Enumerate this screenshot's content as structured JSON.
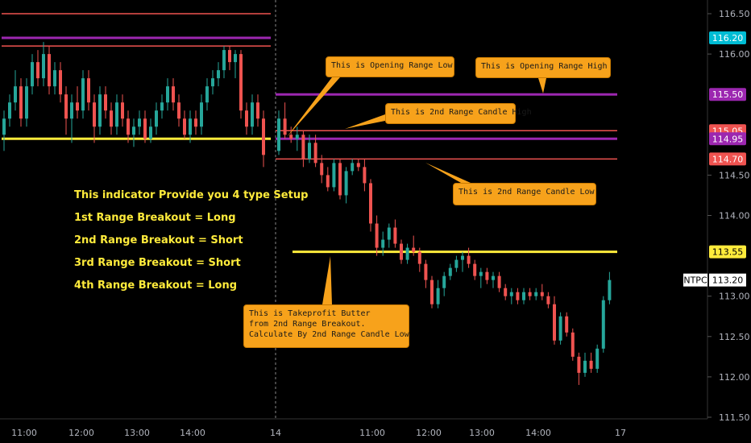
{
  "chart_data": {
    "type": "candlestick",
    "symbol": "NTPC",
    "y_axis": {
      "ticks": [
        {
          "value": 116.5,
          "label": "116.50"
        },
        {
          "value": 116.0,
          "label": "116.00"
        },
        {
          "value": 114.5,
          "label": "114.50"
        },
        {
          "value": 114.0,
          "label": "114.00"
        },
        {
          "value": 113.0,
          "label": "113.00"
        },
        {
          "value": 112.5,
          "label": "112.50"
        },
        {
          "value": 112.0,
          "label": "112.00"
        },
        {
          "value": 111.5,
          "label": "111.50"
        }
      ],
      "ylim": [
        111.5,
        116.6
      ]
    },
    "x_axis": {
      "ticks": [
        "11:00",
        "12:00",
        "13:00",
        "14:00",
        "14",
        "11:00",
        "12:00",
        "13:00",
        "14:00",
        "17"
      ]
    },
    "price_tags": [
      {
        "label": "116.20",
        "value": 116.2,
        "color": "#00bcd4"
      },
      {
        "label": "115.50",
        "value": 115.5,
        "color": "#9c27b0"
      },
      {
        "label": "115.05",
        "value": 115.05,
        "color": "#ef5350"
      },
      {
        "label": "114.95",
        "value": 114.95,
        "color": "#9c27b0"
      },
      {
        "label": "114.70",
        "value": 114.7,
        "color": "#ef5350"
      },
      {
        "label": "113.55",
        "value": 113.55,
        "color": "#ffeb3b"
      }
    ],
    "current_price": {
      "symbol": "NTPC",
      "label": "113.20",
      "value": 113.2
    },
    "levels": [
      {
        "value": 116.5,
        "color": "#ef5350",
        "day": 1
      },
      {
        "value": 116.2,
        "color": "#9c27b0",
        "day": 1
      },
      {
        "value": 116.1,
        "color": "#ef5350",
        "day": 1
      },
      {
        "value": 114.95,
        "color": "#ffeb3b",
        "day": 1
      },
      {
        "value": 115.5,
        "color": "#9c27b0",
        "day": 2
      },
      {
        "value": 115.05,
        "color": "#ef5350",
        "day": 2
      },
      {
        "value": 114.95,
        "color": "#9c27b0",
        "day": 2
      },
      {
        "value": 114.7,
        "color": "#ef5350",
        "day": 2
      },
      {
        "value": 113.55,
        "color": "#ffeb3b",
        "day": 2
      }
    ],
    "candles_day1": [
      [
        115.0,
        115.3,
        114.8,
        115.2
      ],
      [
        115.2,
        115.5,
        115.1,
        115.4
      ],
      [
        115.4,
        115.8,
        115.3,
        115.6
      ],
      [
        115.6,
        115.7,
        115.1,
        115.2
      ],
      [
        115.2,
        115.7,
        115.1,
        115.6
      ],
      [
        115.6,
        116.0,
        115.5,
        115.9
      ],
      [
        115.9,
        116.05,
        115.6,
        115.7
      ],
      [
        115.7,
        116.15,
        115.6,
        116.0
      ],
      [
        116.0,
        116.1,
        115.5,
        115.6
      ],
      [
        115.6,
        115.9,
        115.5,
        115.8
      ],
      [
        115.8,
        115.9,
        115.4,
        115.5
      ],
      [
        115.5,
        115.6,
        115.0,
        115.2
      ],
      [
        115.2,
        115.5,
        114.9,
        115.4
      ],
      [
        115.4,
        115.6,
        115.2,
        115.3
      ],
      [
        115.3,
        115.8,
        115.2,
        115.7
      ],
      [
        115.7,
        115.8,
        115.3,
        115.4
      ],
      [
        115.4,
        115.5,
        114.9,
        115.1
      ],
      [
        115.1,
        115.6,
        115.0,
        115.5
      ],
      [
        115.5,
        115.6,
        115.2,
        115.3
      ],
      [
        115.3,
        115.4,
        115.0,
        115.1
      ],
      [
        115.1,
        115.5,
        115.0,
        115.4
      ],
      [
        115.4,
        115.5,
        115.1,
        115.2
      ],
      [
        115.2,
        115.3,
        114.9,
        115.0
      ],
      [
        115.0,
        115.2,
        114.85,
        115.1
      ],
      [
        115.1,
        115.3,
        115.0,
        115.2
      ],
      [
        115.2,
        115.3,
        114.9,
        114.95
      ],
      [
        114.95,
        115.2,
        114.9,
        115.1
      ],
      [
        115.1,
        115.4,
        115.0,
        115.3
      ],
      [
        115.3,
        115.5,
        115.2,
        115.4
      ],
      [
        115.4,
        115.7,
        115.3,
        115.6
      ],
      [
        115.6,
        115.7,
        115.3,
        115.4
      ],
      [
        115.4,
        115.5,
        115.1,
        115.2
      ],
      [
        115.2,
        115.3,
        114.95,
        115.0
      ],
      [
        115.0,
        115.3,
        114.9,
        115.2
      ],
      [
        115.2,
        115.3,
        115.0,
        115.1
      ],
      [
        115.1,
        115.5,
        115.0,
        115.4
      ],
      [
        115.4,
        115.7,
        115.3,
        115.6
      ],
      [
        115.6,
        115.8,
        115.5,
        115.7
      ],
      [
        115.7,
        115.9,
        115.6,
        115.8
      ],
      [
        115.8,
        116.1,
        115.7,
        116.05
      ],
      [
        116.05,
        116.1,
        115.8,
        115.9
      ],
      [
        115.9,
        116.05,
        115.7,
        116.0
      ],
      [
        116.0,
        116.05,
        115.2,
        115.3
      ],
      [
        115.3,
        115.4,
        115.0,
        115.1
      ],
      [
        115.1,
        115.5,
        115.0,
        115.4
      ],
      [
        115.4,
        115.5,
        115.1,
        115.2
      ],
      [
        115.2,
        115.3,
        114.6,
        114.75
      ]
    ],
    "candles_day2": [
      [
        114.8,
        115.3,
        114.75,
        115.2
      ],
      [
        115.2,
        115.4,
        114.95,
        115.0
      ],
      [
        115.0,
        115.1,
        114.9,
        114.95
      ],
      [
        114.95,
        115.1,
        114.8,
        115.0
      ],
      [
        115.0,
        115.05,
        114.6,
        114.7
      ],
      [
        114.7,
        115.0,
        114.65,
        114.9
      ],
      [
        114.9,
        115.0,
        114.6,
        114.65
      ],
      [
        114.65,
        114.75,
        114.4,
        114.5
      ],
      [
        114.5,
        114.6,
        114.3,
        114.35
      ],
      [
        114.35,
        114.7,
        114.3,
        114.65
      ],
      [
        114.65,
        114.7,
        114.2,
        114.25
      ],
      [
        114.25,
        114.6,
        114.15,
        114.55
      ],
      [
        114.55,
        114.7,
        114.5,
        114.65
      ],
      [
        114.65,
        114.7,
        114.55,
        114.6
      ],
      [
        114.6,
        114.7,
        114.3,
        114.4
      ],
      [
        114.4,
        114.45,
        113.8,
        113.9
      ],
      [
        113.9,
        114.0,
        113.5,
        113.6
      ],
      [
        113.6,
        113.8,
        113.5,
        113.7
      ],
      [
        113.7,
        113.9,
        113.6,
        113.85
      ],
      [
        113.85,
        113.95,
        113.6,
        113.65
      ],
      [
        113.65,
        113.7,
        113.4,
        113.45
      ],
      [
        113.45,
        113.65,
        113.4,
        113.6
      ],
      [
        113.6,
        113.75,
        113.5,
        113.55
      ],
      [
        113.55,
        113.6,
        113.3,
        113.4
      ],
      [
        113.4,
        113.45,
        113.1,
        113.2
      ],
      [
        113.2,
        113.25,
        112.85,
        112.9
      ],
      [
        112.9,
        113.2,
        112.85,
        113.1
      ],
      [
        113.1,
        113.3,
        113.0,
        113.25
      ],
      [
        113.25,
        113.4,
        113.2,
        113.35
      ],
      [
        113.35,
        113.5,
        113.3,
        113.45
      ],
      [
        113.45,
        113.55,
        113.3,
        113.5
      ],
      [
        113.5,
        113.6,
        113.35,
        113.4
      ],
      [
        113.4,
        113.45,
        113.2,
        113.25
      ],
      [
        113.25,
        113.35,
        113.1,
        113.3
      ],
      [
        113.3,
        113.35,
        113.15,
        113.2
      ],
      [
        113.2,
        113.3,
        113.1,
        113.25
      ],
      [
        113.25,
        113.3,
        113.05,
        113.1
      ],
      [
        113.1,
        113.15,
        112.95,
        113.0
      ],
      [
        113.0,
        113.1,
        112.9,
        113.05
      ],
      [
        113.05,
        113.1,
        112.9,
        112.95
      ],
      [
        112.95,
        113.1,
        112.9,
        113.05
      ],
      [
        113.05,
        113.1,
        112.95,
        113.0
      ],
      [
        113.0,
        113.1,
        112.95,
        113.05
      ],
      [
        113.05,
        113.15,
        112.95,
        113.0
      ],
      [
        113.0,
        113.05,
        112.85,
        112.9
      ],
      [
        112.9,
        113.0,
        112.4,
        112.45
      ],
      [
        112.45,
        112.8,
        112.4,
        112.75
      ],
      [
        112.75,
        112.8,
        112.5,
        112.55
      ],
      [
        112.55,
        112.6,
        112.2,
        112.25
      ],
      [
        112.25,
        112.3,
        111.9,
        112.05
      ],
      [
        112.05,
        112.3,
        112.0,
        112.2
      ],
      [
        112.2,
        112.3,
        112.05,
        112.1
      ],
      [
        112.1,
        112.4,
        112.05,
        112.35
      ],
      [
        112.35,
        113.0,
        112.3,
        112.95
      ],
      [
        112.95,
        113.3,
        112.9,
        113.2
      ]
    ]
  },
  "setup_text": [
    "This indicator Provide you 4 type Setup",
    "1st Range Breakout = Long",
    "2nd Range Breakout = Short",
    "3rd Range Breakout = Short",
    "4th Range Breakout = Long"
  ],
  "callouts": {
    "opening_range_low": "This is Opening Range Low",
    "opening_range_high": "This is Opening Range High",
    "range2_high": "This is 2nd Range Candle High",
    "range2_low": "This is 2nd Range Candle Low",
    "takeprofit": "This is Takeprofit Butter\nfrom 2nd Range Breakout.\nCalculate By 2nd Range Candle Low"
  },
  "colors": {
    "bull": "#26a69a",
    "bear": "#ef5350",
    "axis_text": "#b2b5be",
    "callout_bg": "#f7a21b"
  }
}
